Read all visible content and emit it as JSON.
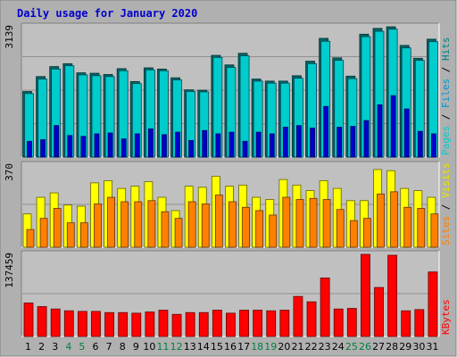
{
  "chart_data": {
    "type": "bar",
    "title": "Daily usage for January 2020",
    "categories": [
      "1",
      "2",
      "3",
      "4",
      "5",
      "6",
      "7",
      "8",
      "9",
      "10",
      "11",
      "12",
      "13",
      "14",
      "15",
      "16",
      "17",
      "18",
      "19",
      "20",
      "21",
      "22",
      "23",
      "24",
      "25",
      "26",
      "27",
      "28",
      "29",
      "30",
      "31"
    ],
    "weekend_days": [
      "4",
      "5",
      "11",
      "12",
      "18",
      "19",
      "25",
      "26"
    ],
    "colors": {
      "frame": "#b0b0b0",
      "plot_bg": "#c0c0c0",
      "hits": "#00cccc",
      "hits_dark": "#006666",
      "files": "#0099cc",
      "pages": "#0000cc",
      "visits": "#ffff00",
      "sites": "#ff8000",
      "kbytes": "#ff0000",
      "weekday_label": "#000000",
      "weekend_label": "#008040",
      "title": "#0000cc"
    },
    "panels": [
      {
        "max_label": "3139",
        "ymax": 3139,
        "right_labels": [
          {
            "text": "Pages",
            "color": "#00cccc"
          },
          {
            "text": " / ",
            "color": "#000000"
          },
          {
            "text": "Files",
            "color": "#0099cc"
          },
          {
            "text": " / ",
            "color": "#000000"
          },
          {
            "text": "Hits",
            "color": "#008080"
          }
        ],
        "series": [
          {
            "name": "Hits",
            "values": [
              1580,
              1940,
              2180,
              2250,
              2030,
              2020,
              1990,
              2130,
              1820,
              2150,
              2120,
              1910,
              1620,
              1610,
              2450,
              2220,
              2500,
              1880,
              1830,
              1830,
              1960,
              2310,
              2860,
              2390,
              1950,
              2960,
              3100,
              3139,
              2690,
              2380,
              2840
            ]
          },
          {
            "name": "Files",
            "values": [
              1530,
              1880,
              2120,
              2200,
              1980,
              1960,
              1940,
              2080,
              1770,
              2100,
              2080,
              1860,
              1580,
              1570,
              2400,
              2160,
              2440,
              1830,
              1780,
              1780,
              1900,
              2250,
              2790,
              2330,
              1890,
              2900,
              3030,
              3080,
              2630,
              2330,
              2780
            ]
          },
          {
            "name": "Pages",
            "values": [
              380,
              420,
              760,
              520,
              500,
              560,
              580,
              440,
              560,
              680,
              540,
              600,
              400,
              640,
              560,
              600,
              380,
              600,
              560,
              720,
              760,
              700,
              1220,
              720,
              740,
              880,
              1260,
              1480,
              1160,
              620,
              560
            ]
          }
        ]
      },
      {
        "max_label": "370",
        "ymax": 370,
        "right_labels": [
          {
            "text": "Sites",
            "color": "#ff8000"
          },
          {
            "text": " / ",
            "color": "#000000"
          },
          {
            "text": "Visits",
            "color": "#e6e600"
          }
        ],
        "series": [
          {
            "name": "Visits",
            "values": [
              150,
              225,
              245,
              190,
              185,
              290,
              300,
              265,
              275,
              295,
              225,
              165,
              275,
              270,
              320,
              275,
              280,
              225,
              215,
              305,
              280,
              255,
              300,
              265,
              210,
              210,
              350,
              345,
              265,
              255,
              225
            ]
          },
          {
            "name": "Sites",
            "values": [
              80,
              130,
              175,
              110,
              110,
              195,
              225,
              205,
              205,
              210,
              160,
              130,
              205,
              195,
              235,
              205,
              180,
              165,
              145,
              225,
              215,
              220,
              215,
              170,
              120,
              130,
              240,
              250,
              180,
              175,
              150
            ]
          }
        ]
      },
      {
        "max_label": "137459",
        "ymax": 137459,
        "right_labels": [
          {
            "text": "KBytes",
            "color": "#ff0000"
          }
        ],
        "series": [
          {
            "name": "KBytes",
            "values": [
              56000,
              50000,
              46000,
              43000,
              42000,
              42000,
              40000,
              40000,
              39000,
              41000,
              44000,
              37000,
              40000,
              40000,
              44000,
              39000,
              44000,
              44000,
              43000,
              44000,
              67000,
              58000,
              98000,
              46000,
              47000,
              137459,
              82000,
              136000,
              43000,
              45000,
              108000
            ]
          }
        ]
      }
    ]
  }
}
